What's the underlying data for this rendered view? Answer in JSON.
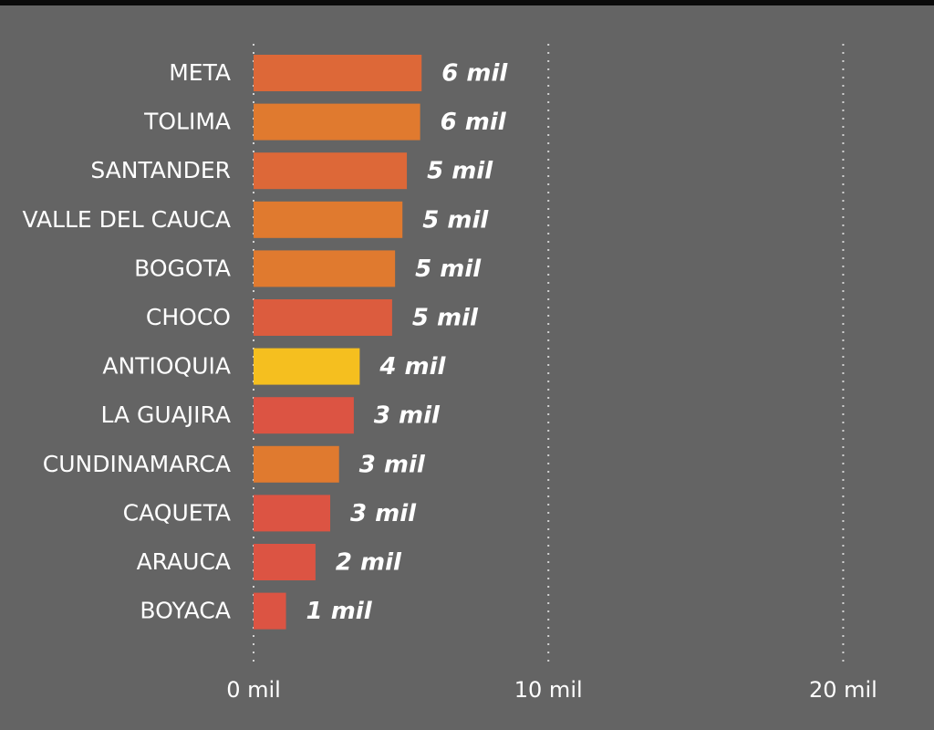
{
  "chart_data": {
    "type": "bar",
    "orientation": "horizontal",
    "categories": [
      "META",
      "TOLIMA",
      "SANTANDER",
      "VALLE DEL CAUCA",
      "BOGOTA",
      "CHOCO",
      "ANTIOQUIA",
      "LA GUAJIRA",
      "CUNDINAMARCA",
      "CAQUETA",
      "ARAUCA",
      "BOYACA"
    ],
    "values": [
      5.7,
      5.65,
      5.2,
      5.05,
      4.8,
      4.7,
      3.6,
      3.4,
      2.9,
      2.6,
      2.1,
      1.1
    ],
    "data_labels": [
      "6 mil",
      "6 mil",
      "5 mil",
      "5 mil",
      "5 mil",
      "5 mil",
      "4 mil",
      "3 mil",
      "3 mil",
      "3 mil",
      "2 mil",
      "1 mil"
    ],
    "bar_colors": [
      "#dd6838",
      "#e07a2f",
      "#dd6838",
      "#e07a2f",
      "#e07a2f",
      "#dc5c3e",
      "#f5bf1f",
      "#dc5443",
      "#e07a2f",
      "#dc5443",
      "#dc5443",
      "#dc5443"
    ],
    "xlim": [
      0,
      22.4
    ],
    "xticks": [
      0,
      10,
      20
    ],
    "xtick_labels": [
      "0 mil",
      "10 mil",
      "20 mil"
    ],
    "grid": true,
    "legend": "none",
    "title": "",
    "xlabel": "",
    "ylabel": ""
  }
}
